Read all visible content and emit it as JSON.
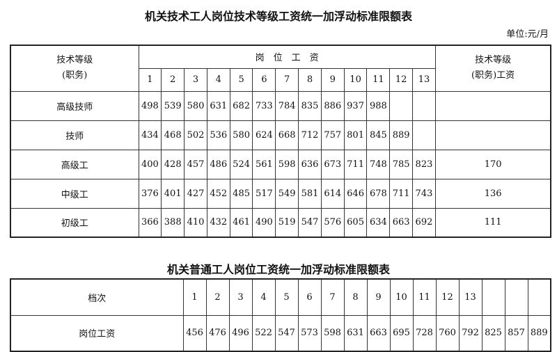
{
  "table1": {
    "title": "机关技术工人岗位技术等级工资统一加浮动标准限额表",
    "unit": "单位:元/月",
    "header_left_line1": "技术等级",
    "header_left_line2": "(职务)",
    "header_group": "岗　位　工　资",
    "header_right_line1": "技术等级",
    "header_right_line2": "(职务)工资",
    "grades": [
      "1",
      "2",
      "3",
      "4",
      "5",
      "6",
      "7",
      "8",
      "9",
      "10",
      "11",
      "12",
      "13"
    ],
    "rows": [
      {
        "label": "高级技师",
        "values": [
          "498",
          "539",
          "580",
          "631",
          "682",
          "733",
          "784",
          "835",
          "886",
          "937",
          "988",
          "",
          ""
        ],
        "grade_wage": ""
      },
      {
        "label": "技师",
        "values": [
          "434",
          "468",
          "502",
          "536",
          "580",
          "624",
          "668",
          "712",
          "757",
          "801",
          "845",
          "889",
          ""
        ],
        "grade_wage": ""
      },
      {
        "label": "高级工",
        "values": [
          "400",
          "428",
          "457",
          "486",
          "524",
          "561",
          "598",
          "636",
          "673",
          "711",
          "748",
          "785",
          "823"
        ],
        "grade_wage": "170"
      },
      {
        "label": "中级工",
        "values": [
          "376",
          "401",
          "427",
          "452",
          "485",
          "517",
          "549",
          "581",
          "614",
          "646",
          "678",
          "711",
          "743"
        ],
        "grade_wage": "136"
      },
      {
        "label": "初级工",
        "values": [
          "366",
          "388",
          "410",
          "432",
          "461",
          "490",
          "519",
          "547",
          "576",
          "605",
          "634",
          "663",
          "692"
        ],
        "grade_wage": "111"
      }
    ]
  },
  "table2": {
    "title": "机关普通工人岗位工资统一加浮动标准限额表",
    "row1_label": "档次",
    "levels": [
      "1",
      "2",
      "3",
      "4",
      "5",
      "6",
      "7",
      "8",
      "9",
      "10",
      "11",
      "12",
      "13",
      "",
      "",
      ""
    ],
    "row2_label": "岗位工资",
    "values": [
      "456",
      "476",
      "496",
      "522",
      "547",
      "573",
      "598",
      "631",
      "663",
      "695",
      "728",
      "760",
      "792",
      "825",
      "857",
      "889"
    ]
  }
}
